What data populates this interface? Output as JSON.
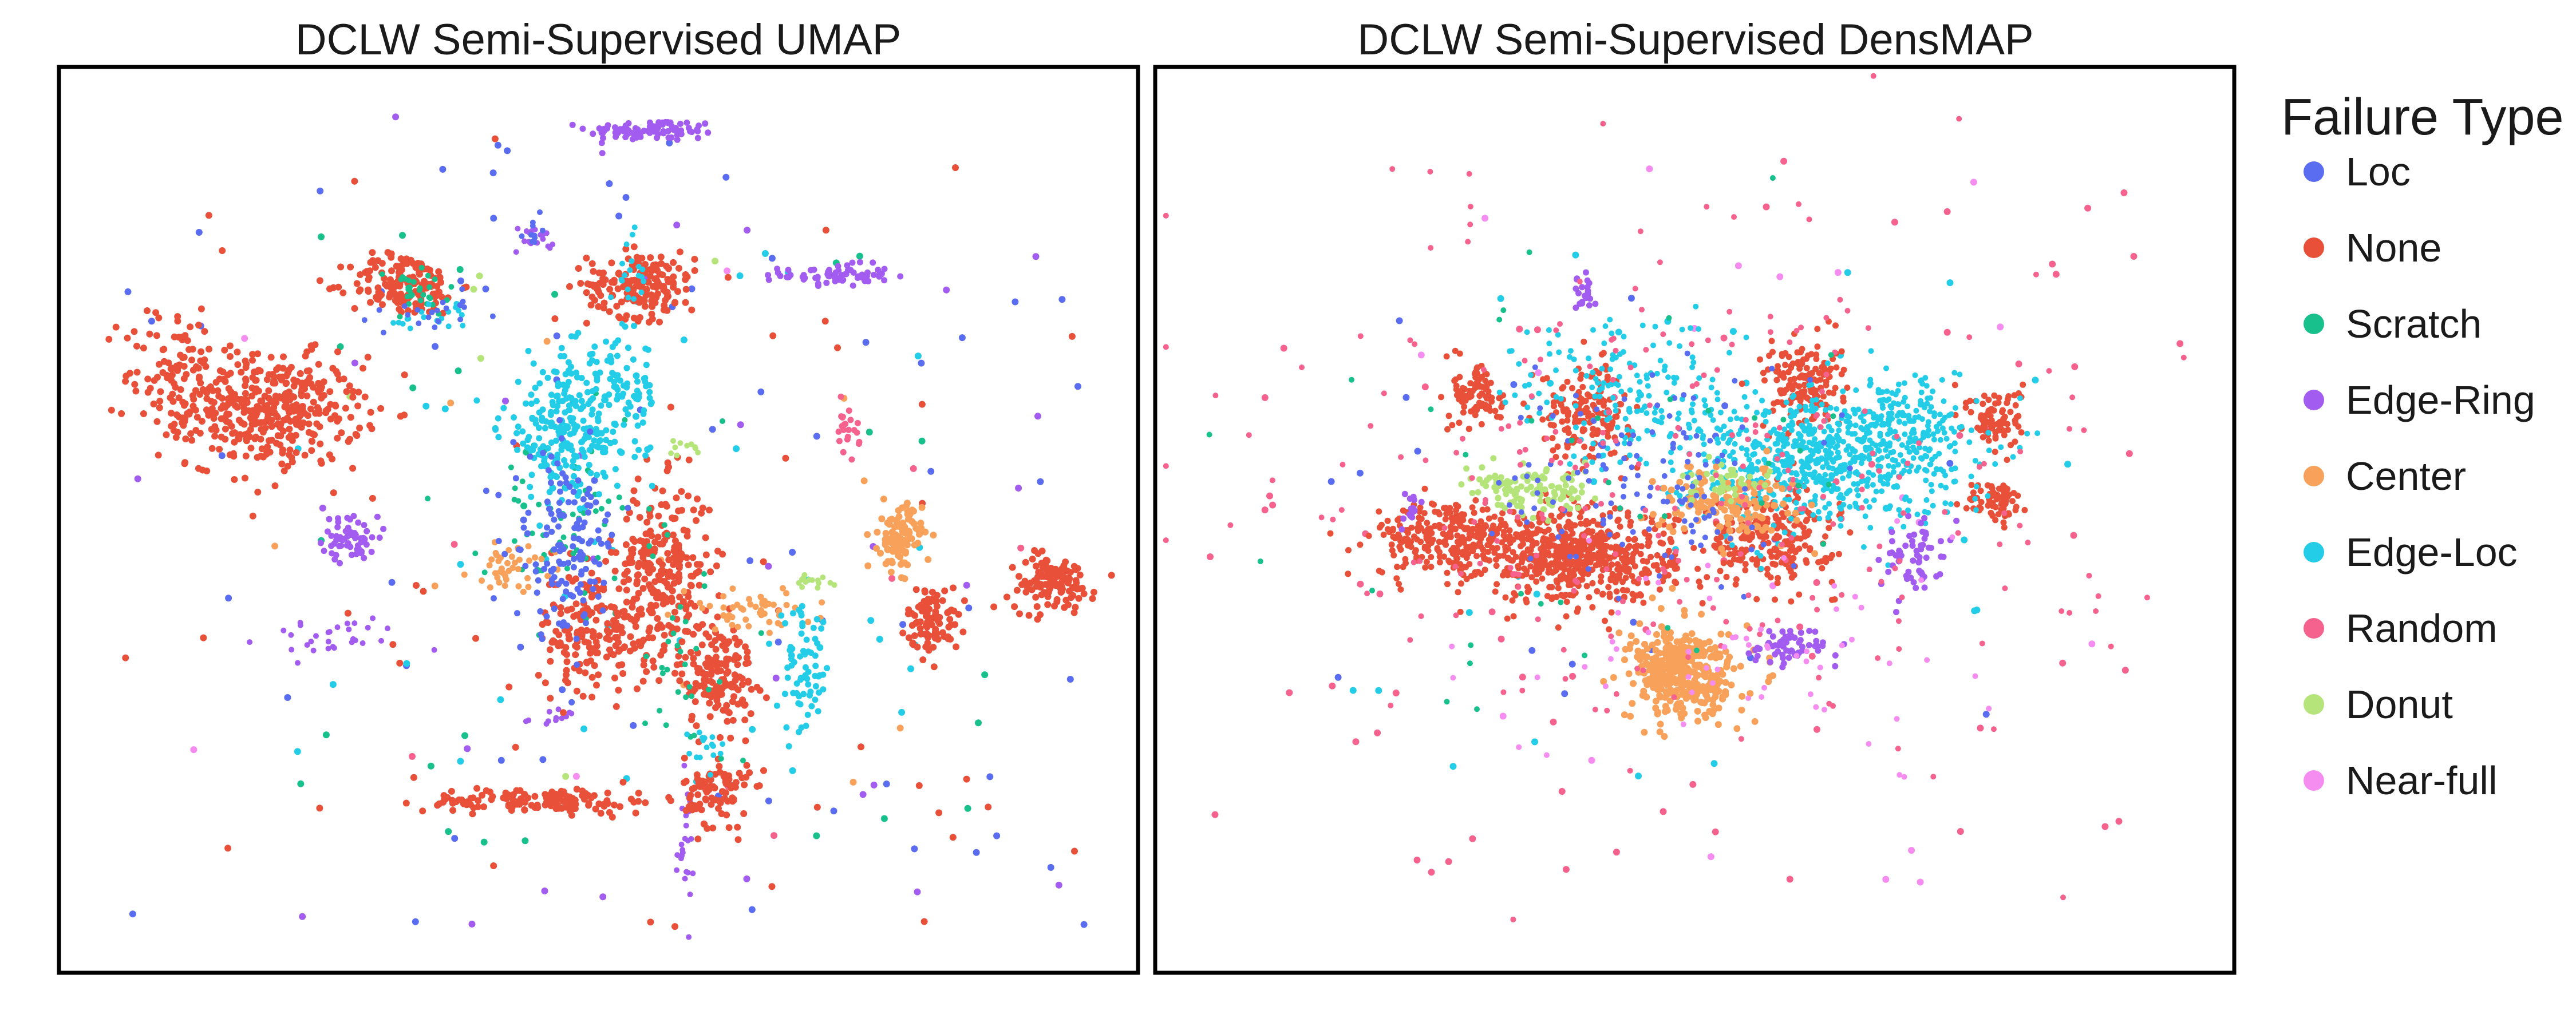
{
  "chart_data": [
    {
      "type": "scatter",
      "title": "DCLW Semi-Supervised UMAP",
      "xlabel": "",
      "ylabel": "",
      "grid": false,
      "axes_ticks": false,
      "clusters": [
        {
          "series": "Edge-Ring",
          "cx": 0.55,
          "cy": 0.93,
          "sx": 0.03,
          "sy": 0.006,
          "n": 90,
          "size": 9
        },
        {
          "series": "Edge-Ring",
          "cx": 0.72,
          "cy": 0.77,
          "sx": 0.025,
          "sy": 0.006,
          "n": 70,
          "size": 9
        },
        {
          "series": "Edge-Ring",
          "cx": 0.27,
          "cy": 0.48,
          "sx": 0.013,
          "sy": 0.012,
          "n": 60,
          "size": 9
        },
        {
          "series": "Edge-Ring",
          "cx": 0.44,
          "cy": 0.81,
          "sx": 0.01,
          "sy": 0.008,
          "n": 18,
          "size": 8
        },
        {
          "series": "Edge-Ring",
          "cx": 0.58,
          "cy": 0.14,
          "sx": 0.004,
          "sy": 0.035,
          "n": 24,
          "size": 8
        },
        {
          "series": "Edge-Ring",
          "cx": 0.25,
          "cy": 0.37,
          "sx": 0.035,
          "sy": 0.012,
          "n": 30,
          "size": 8
        },
        {
          "series": "Edge-Ring",
          "cx": 0.46,
          "cy": 0.28,
          "sx": 0.012,
          "sy": 0.006,
          "n": 12,
          "size": 8
        },
        {
          "series": "None",
          "cx": 0.2,
          "cy": 0.62,
          "sx": 0.04,
          "sy": 0.03,
          "n": 380,
          "size": 10
        },
        {
          "series": "None",
          "cx": 0.11,
          "cy": 0.66,
          "sx": 0.025,
          "sy": 0.04,
          "n": 120,
          "size": 10
        },
        {
          "series": "None",
          "cx": 0.32,
          "cy": 0.76,
          "sx": 0.025,
          "sy": 0.017,
          "n": 160,
          "size": 10
        },
        {
          "series": "None",
          "cx": 0.54,
          "cy": 0.76,
          "sx": 0.025,
          "sy": 0.018,
          "n": 180,
          "size": 10
        },
        {
          "series": "None",
          "cx": 0.56,
          "cy": 0.45,
          "sx": 0.022,
          "sy": 0.045,
          "n": 230,
          "size": 10
        },
        {
          "series": "None",
          "cx": 0.5,
          "cy": 0.38,
          "sx": 0.028,
          "sy": 0.035,
          "n": 200,
          "size": 10
        },
        {
          "series": "None",
          "cx": 0.61,
          "cy": 0.33,
          "sx": 0.018,
          "sy": 0.03,
          "n": 160,
          "size": 10
        },
        {
          "series": "None",
          "cx": 0.61,
          "cy": 0.2,
          "sx": 0.015,
          "sy": 0.02,
          "n": 90,
          "size": 10
        },
        {
          "series": "None",
          "cx": 0.81,
          "cy": 0.39,
          "sx": 0.012,
          "sy": 0.018,
          "n": 90,
          "size": 10
        },
        {
          "series": "None",
          "cx": 0.92,
          "cy": 0.43,
          "sx": 0.02,
          "sy": 0.015,
          "n": 120,
          "size": 10
        },
        {
          "series": "None",
          "cx": 0.45,
          "cy": 0.19,
          "sx": 0.055,
          "sy": 0.007,
          "n": 140,
          "size": 10
        },
        {
          "series": "Scratch",
          "cx": 0.47,
          "cy": 0.5,
          "sx": 0.04,
          "sy": 0.05,
          "n": 60,
          "size": 8
        },
        {
          "series": "Scratch",
          "cx": 0.33,
          "cy": 0.75,
          "sx": 0.02,
          "sy": 0.014,
          "n": 30,
          "size": 8
        },
        {
          "series": "Scratch",
          "cx": 0.58,
          "cy": 0.34,
          "sx": 0.03,
          "sy": 0.06,
          "n": 30,
          "size": 8
        },
        {
          "series": "Center",
          "cx": 0.78,
          "cy": 0.48,
          "sx": 0.01,
          "sy": 0.018,
          "n": 110,
          "size": 10
        },
        {
          "series": "Center",
          "cx": 0.64,
          "cy": 0.4,
          "sx": 0.03,
          "sy": 0.012,
          "n": 50,
          "size": 9
        },
        {
          "series": "Center",
          "cx": 0.42,
          "cy": 0.45,
          "sx": 0.02,
          "sy": 0.012,
          "n": 40,
          "size": 9
        },
        {
          "series": "Edge-Loc",
          "cx": 0.47,
          "cy": 0.6,
          "sx": 0.03,
          "sy": 0.04,
          "n": 240,
          "size": 9
        },
        {
          "series": "Edge-Loc",
          "cx": 0.52,
          "cy": 0.64,
          "sx": 0.018,
          "sy": 0.03,
          "n": 80,
          "size": 9
        },
        {
          "series": "Edge-Loc",
          "cx": 0.69,
          "cy": 0.33,
          "sx": 0.012,
          "sy": 0.035,
          "n": 70,
          "size": 9
        },
        {
          "series": "Edge-Loc",
          "cx": 0.53,
          "cy": 0.77,
          "sx": 0.008,
          "sy": 0.025,
          "n": 20,
          "size": 8
        },
        {
          "series": "Edge-Loc",
          "cx": 0.6,
          "cy": 0.25,
          "sx": 0.01,
          "sy": 0.012,
          "n": 16,
          "size": 8
        },
        {
          "series": "Edge-Loc",
          "cx": 0.35,
          "cy": 0.72,
          "sx": 0.02,
          "sy": 0.01,
          "n": 20,
          "size": 8
        },
        {
          "series": "Loc",
          "cx": 0.47,
          "cy": 0.47,
          "sx": 0.025,
          "sy": 0.05,
          "n": 140,
          "size": 9
        },
        {
          "series": "Loc",
          "cx": 0.35,
          "cy": 0.73,
          "sx": 0.02,
          "sy": 0.01,
          "n": 20,
          "size": 8
        },
        {
          "series": "Loc",
          "cx": 0.44,
          "cy": 0.82,
          "sx": 0.005,
          "sy": 0.01,
          "n": 10,
          "size": 8
        },
        {
          "series": "Random",
          "cx": 0.73,
          "cy": 0.6,
          "sx": 0.006,
          "sy": 0.012,
          "n": 22,
          "size": 9
        },
        {
          "series": "Donut",
          "cx": 0.7,
          "cy": 0.43,
          "sx": 0.008,
          "sy": 0.005,
          "n": 14,
          "size": 8
        },
        {
          "series": "Donut",
          "cx": 0.58,
          "cy": 0.58,
          "sx": 0.008,
          "sy": 0.004,
          "n": 10,
          "size": 8
        }
      ],
      "scatter_points": {
        "Loc": {
          "n": 70,
          "xlim": [
            0.05,
            0.95
          ],
          "ylim": [
            0.05,
            0.95
          ]
        },
        "None": {
          "n": 60,
          "xlim": [
            0.05,
            0.95
          ],
          "ylim": [
            0.05,
            0.95
          ]
        },
        "Scratch": {
          "n": 30,
          "xlim": [
            0.1,
            0.9
          ],
          "ylim": [
            0.1,
            0.9
          ]
        },
        "Edge-Ring": {
          "n": 30,
          "xlim": [
            0.05,
            0.95
          ],
          "ylim": [
            0.05,
            0.95
          ]
        },
        "Center": {
          "n": 12,
          "xlim": [
            0.2,
            0.8
          ],
          "ylim": [
            0.2,
            0.8
          ]
        },
        "Edge-Loc": {
          "n": 40,
          "xlim": [
            0.2,
            0.8
          ],
          "ylim": [
            0.2,
            0.8
          ]
        },
        "Random": {
          "n": 8,
          "xlim": [
            0.1,
            0.9
          ],
          "ylim": [
            0.1,
            0.9
          ]
        },
        "Donut": {
          "n": 6,
          "xlim": [
            0.2,
            0.8
          ],
          "ylim": [
            0.2,
            0.8
          ]
        },
        "Near-full": {
          "n": 4,
          "xlim": [
            0.1,
            0.9
          ],
          "ylim": [
            0.1,
            0.9
          ]
        }
      }
    },
    {
      "type": "scatter",
      "title": "DCLW Semi-Supervised DensMAP",
      "xlabel": "",
      "ylabel": "",
      "grid": false,
      "axes_ticks": false,
      "clusters": [
        {
          "series": "None",
          "cx": 0.39,
          "cy": 0.46,
          "sx": 0.045,
          "sy": 0.025,
          "n": 600,
          "size": 9
        },
        {
          "series": "None",
          "cx": 0.27,
          "cy": 0.48,
          "sx": 0.035,
          "sy": 0.02,
          "n": 250,
          "size": 9
        },
        {
          "series": "None",
          "cx": 0.4,
          "cy": 0.62,
          "sx": 0.02,
          "sy": 0.025,
          "n": 160,
          "size": 9
        },
        {
          "series": "None",
          "cx": 0.57,
          "cy": 0.48,
          "sx": 0.03,
          "sy": 0.025,
          "n": 240,
          "size": 9
        },
        {
          "series": "None",
          "cx": 0.6,
          "cy": 0.65,
          "sx": 0.018,
          "sy": 0.025,
          "n": 160,
          "size": 9
        },
        {
          "series": "None",
          "cx": 0.3,
          "cy": 0.64,
          "sx": 0.012,
          "sy": 0.02,
          "n": 90,
          "size": 9
        },
        {
          "series": "None",
          "cx": 0.78,
          "cy": 0.61,
          "sx": 0.012,
          "sy": 0.018,
          "n": 90,
          "size": 9
        },
        {
          "series": "None",
          "cx": 0.78,
          "cy": 0.52,
          "sx": 0.013,
          "sy": 0.012,
          "n": 70,
          "size": 9
        },
        {
          "series": "Edge-Loc",
          "cx": 0.61,
          "cy": 0.57,
          "sx": 0.07,
          "sy": 0.035,
          "n": 700,
          "size": 8
        },
        {
          "series": "Edge-Loc",
          "cx": 0.43,
          "cy": 0.64,
          "sx": 0.05,
          "sy": 0.04,
          "n": 150,
          "size": 8
        },
        {
          "series": "Edge-Loc",
          "cx": 0.7,
          "cy": 0.61,
          "sx": 0.025,
          "sy": 0.03,
          "n": 120,
          "size": 8
        },
        {
          "series": "Center",
          "cx": 0.49,
          "cy": 0.33,
          "sx": 0.025,
          "sy": 0.025,
          "n": 380,
          "size": 10
        },
        {
          "series": "Center",
          "cx": 0.53,
          "cy": 0.52,
          "sx": 0.03,
          "sy": 0.02,
          "n": 140,
          "size": 10
        },
        {
          "series": "Donut",
          "cx": 0.35,
          "cy": 0.53,
          "sx": 0.03,
          "sy": 0.012,
          "n": 120,
          "size": 9
        },
        {
          "series": "Donut",
          "cx": 0.53,
          "cy": 0.54,
          "sx": 0.02,
          "sy": 0.01,
          "n": 40,
          "size": 9
        },
        {
          "series": "Edge-Ring",
          "cx": 0.59,
          "cy": 0.36,
          "sx": 0.02,
          "sy": 0.012,
          "n": 60,
          "size": 9
        },
        {
          "series": "Edge-Ring",
          "cx": 0.7,
          "cy": 0.46,
          "sx": 0.015,
          "sy": 0.02,
          "n": 60,
          "size": 9
        },
        {
          "series": "Edge-Ring",
          "cx": 0.4,
          "cy": 0.75,
          "sx": 0.006,
          "sy": 0.012,
          "n": 20,
          "size": 9
        },
        {
          "series": "Edge-Ring",
          "cx": 0.24,
          "cy": 0.51,
          "sx": 0.006,
          "sy": 0.008,
          "n": 14,
          "size": 9
        },
        {
          "series": "Loc",
          "cx": 0.45,
          "cy": 0.55,
          "sx": 0.06,
          "sy": 0.06,
          "n": 130,
          "size": 8
        },
        {
          "series": "Random",
          "cx": 0.5,
          "cy": 0.55,
          "sx": 0.18,
          "sy": 0.15,
          "n": 260,
          "size": 8
        },
        {
          "series": "Near-full",
          "cx": 0.55,
          "cy": 0.35,
          "sx": 0.12,
          "sy": 0.06,
          "n": 60,
          "size": 8
        },
        {
          "series": "Scratch",
          "cx": 0.45,
          "cy": 0.55,
          "sx": 0.15,
          "sy": 0.12,
          "n": 40,
          "size": 8
        }
      ],
      "scatter_points": {
        "Loc": {
          "n": 20,
          "xlim": [
            0.15,
            0.85
          ],
          "ylim": [
            0.25,
            0.8
          ]
        },
        "Random": {
          "n": 70,
          "xlim": [
            0.05,
            0.95
          ],
          "ylim": [
            0.1,
            0.9
          ]
        },
        "Near-full": {
          "n": 20,
          "xlim": [
            0.05,
            0.95
          ],
          "ylim": [
            0.1,
            0.9
          ]
        },
        "Edge-Loc": {
          "n": 30,
          "xlim": [
            0.15,
            0.85
          ],
          "ylim": [
            0.2,
            0.8
          ]
        }
      }
    }
  ],
  "legend": {
    "title": "Failure Type",
    "placement": "right",
    "items": [
      {
        "label": "Loc",
        "color": "#5a6cf0"
      },
      {
        "label": "None",
        "color": "#e8503a"
      },
      {
        "label": "Scratch",
        "color": "#18c08c"
      },
      {
        "label": "Edge-Ring",
        "color": "#a25cf0"
      },
      {
        "label": "Center",
        "color": "#f7a15b"
      },
      {
        "label": "Edge-Loc",
        "color": "#23cde8"
      },
      {
        "label": "Random",
        "color": "#f5628e"
      },
      {
        "label": "Donut",
        "color": "#b5e57a"
      },
      {
        "label": "Near-full",
        "color": "#f58cf0"
      }
    ]
  }
}
